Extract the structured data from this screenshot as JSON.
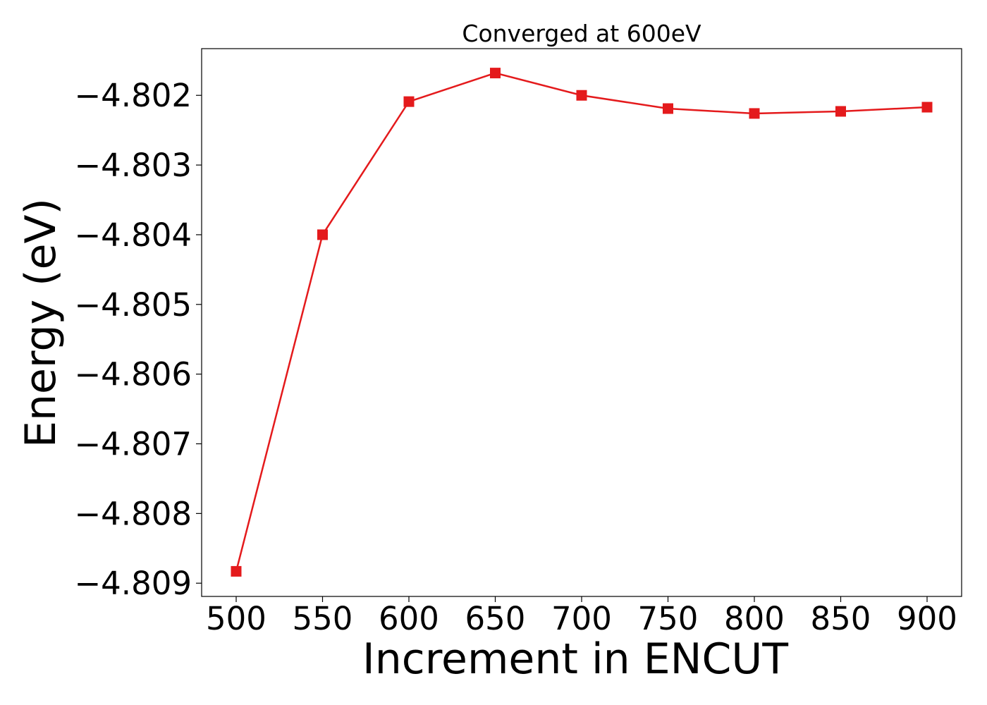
{
  "chart_data": {
    "type": "line",
    "title": "Converged at 600eV",
    "xlabel": "Increment in ENCUT",
    "ylabel": "Energy (eV)",
    "x": [
      500,
      550,
      600,
      650,
      700,
      750,
      800,
      850,
      900
    ],
    "series": [
      {
        "values": [
          -4.80883,
          -4.804,
          -4.80209,
          -4.80168,
          -4.802,
          -4.80219,
          -4.80226,
          -4.80223,
          -4.80217
        ],
        "color": "#e41a1c",
        "marker": "square"
      }
    ],
    "xticks": [
      500,
      550,
      600,
      650,
      700,
      750,
      800,
      850,
      900
    ],
    "xtick_labels": [
      "500",
      "550",
      "600",
      "650",
      "700",
      "750",
      "800",
      "850",
      "900"
    ],
    "yticks": [
      -4.809,
      -4.808,
      -4.807,
      -4.806,
      -4.805,
      -4.804,
      -4.803,
      -4.802
    ],
    "ytick_labels": [
      "−4.809",
      "−4.808",
      "−4.807",
      "−4.806",
      "−4.805",
      "−4.804",
      "−4.803",
      "−4.802"
    ],
    "xlim": [
      480,
      920
    ],
    "ylim": [
      -4.80919,
      -4.80133
    ],
    "grid": false,
    "legend": false
  }
}
